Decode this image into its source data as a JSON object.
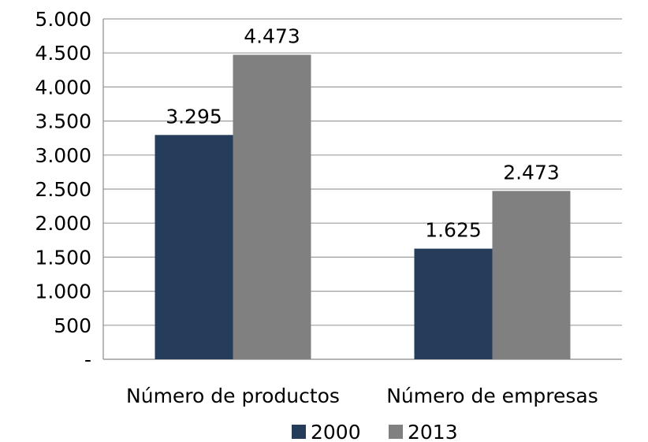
{
  "chart_data": {
    "type": "bar",
    "title": "",
    "xlabel": "",
    "ylabel": "",
    "categories": [
      "Número de productos",
      "Número de empresas"
    ],
    "series": [
      {
        "name": "2000",
        "values": [
          3295,
          1625
        ],
        "labels": [
          "3.295",
          "1.625"
        ],
        "color": "#253d5b"
      },
      {
        "name": "2013",
        "values": [
          4473,
          2473
        ],
        "labels": [
          "4.473",
          "2.473"
        ],
        "color": "#808080"
      }
    ],
    "ylim": [
      0,
      5000
    ],
    "yticks": [
      0,
      500,
      1000,
      1500,
      2000,
      2500,
      3000,
      3500,
      4000,
      4500,
      5000
    ],
    "ytick_labels": [
      "-",
      "500",
      "1.000",
      "1.500",
      "2.000",
      "2.500",
      "3.000",
      "3.500",
      "4.000",
      "4.500",
      "5.000"
    ],
    "grid": true,
    "legend_position": "bottom"
  }
}
